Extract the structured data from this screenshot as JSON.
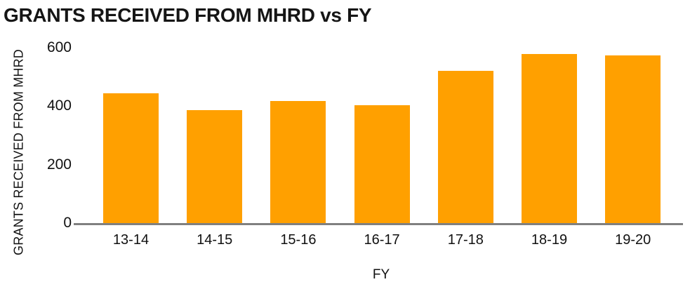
{
  "chart_data": {
    "type": "bar",
    "title": "GRANTS RECEIVED FROM MHRD vs FY",
    "xlabel": "FY",
    "ylabel": "GRANTS RECEIVED FROM MHRD",
    "categories": [
      "13-14",
      "14-15",
      "15-16",
      "16-17",
      "17-18",
      "18-19",
      "19-20"
    ],
    "values": [
      444,
      386,
      417,
      403,
      521,
      578,
      574
    ],
    "ylim": [
      0,
      600
    ],
    "yticks": [
      0,
      200,
      400,
      600
    ],
    "grid": false,
    "legend": false,
    "colors": {
      "bar": "#FFA000",
      "axis_line": "#808080",
      "text": "#111111",
      "background": "#FFFFFF"
    }
  }
}
